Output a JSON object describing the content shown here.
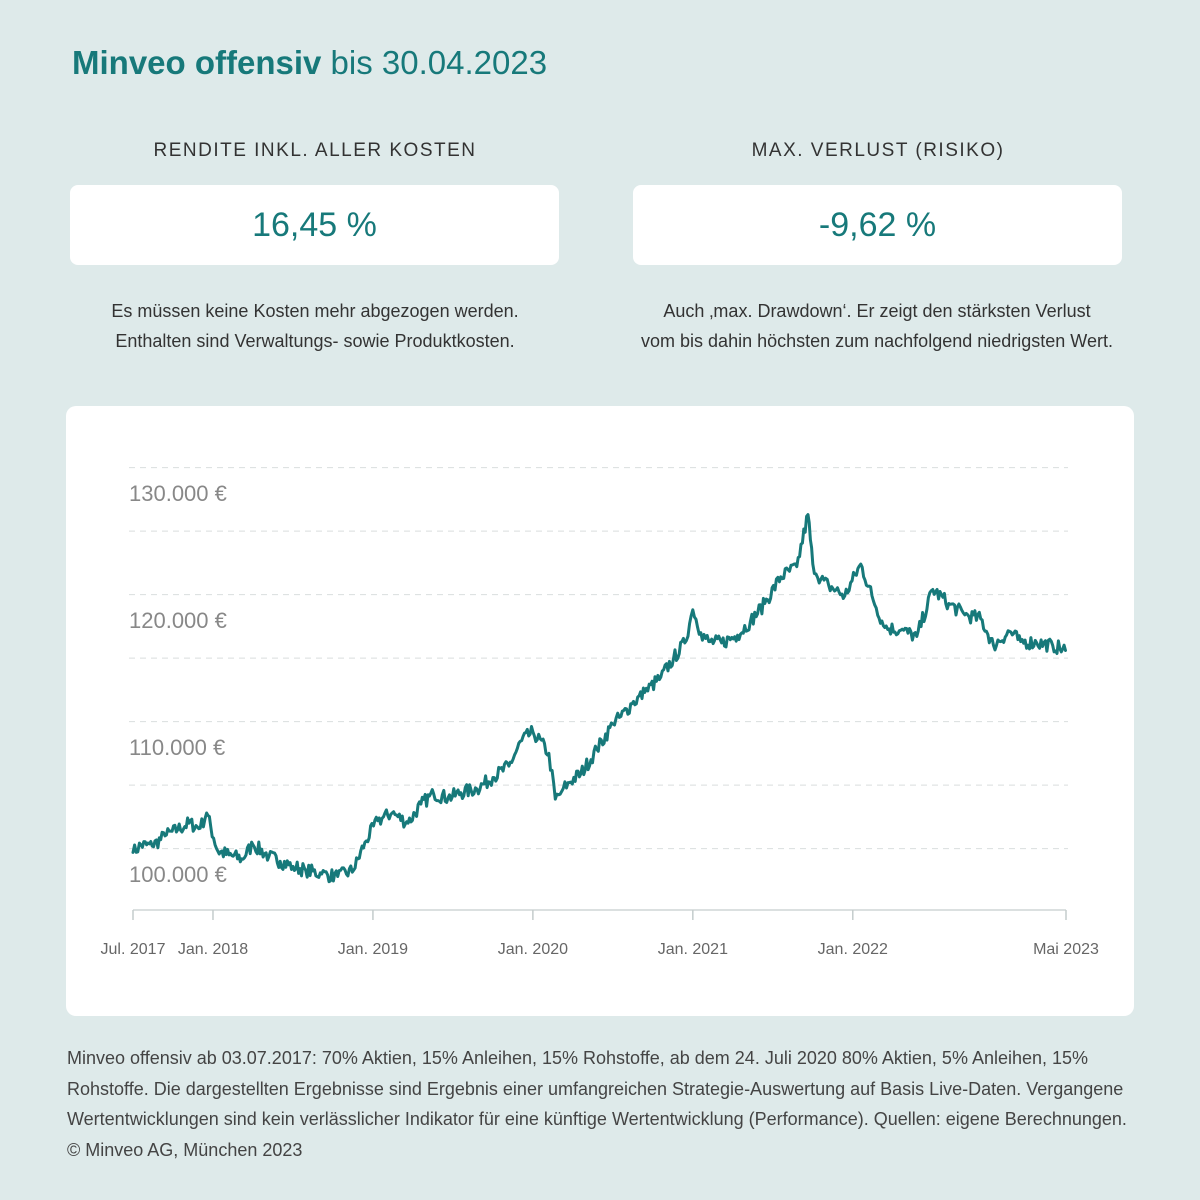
{
  "header": {
    "title_bold": "Minveo offensiv",
    "title_rest": "bis 30.04.2023"
  },
  "kpis": [
    {
      "label": "RENDITE INKL. ALLER KOSTEN",
      "value": "16,45 %",
      "desc_line1": "Es müssen keine Kosten mehr abgezogen werden.",
      "desc_line2": "Enthalten sind Verwaltungs- sowie Produktkosten."
    },
    {
      "label": "MAX. VERLUST (RISIKO)",
      "value": "-9,62 %",
      "desc_line1": "Auch ‚max. Drawdown‘. Er zeigt den stärksten Verlust",
      "desc_line2": "vom bis dahin höchsten zum nachfolgend niedrigsten Wert."
    }
  ],
  "colors": {
    "accent": "#17797a",
    "background": "#deeaea",
    "card": "#ffffff"
  },
  "chart_data": {
    "type": "line",
    "title": "",
    "xlabel": "",
    "ylabel": "",
    "x_range": [
      2017.5,
      2023.333
    ],
    "ylim": [
      96500,
      131000
    ],
    "y_ticks": [
      {
        "value": 100000,
        "label": "100.000 €"
      },
      {
        "value": 110000,
        "label": "110.000 €"
      },
      {
        "value": 120000,
        "label": "120.000 €"
      },
      {
        "value": 130000,
        "label": "130.000 €"
      }
    ],
    "gridlines": [
      102000,
      107000,
      112000,
      117000,
      122000,
      127000,
      132000
    ],
    "x_ticks": [
      {
        "value": 2017.5,
        "label": "Jul. 2017"
      },
      {
        "value": 2018.0,
        "label": "Jan. 2018"
      },
      {
        "value": 2019.0,
        "label": "Jan. 2019"
      },
      {
        "value": 2020.0,
        "label": "Jan. 2020"
      },
      {
        "value": 2021.0,
        "label": "Jan. 2021"
      },
      {
        "value": 2022.0,
        "label": "Jan. 2022"
      },
      {
        "value": 2023.333,
        "label": "Mai 2023"
      }
    ],
    "series": [
      {
        "name": "Minveo offensiv",
        "x": [
          2017.5,
          2017.55,
          2017.62,
          2017.7,
          2017.78,
          2017.85,
          2017.92,
          2017.96,
          2018.03,
          2018.1,
          2018.18,
          2018.25,
          2018.35,
          2018.42,
          2018.5,
          2018.58,
          2018.68,
          2018.78,
          2018.88,
          2018.95,
          2019.03,
          2019.12,
          2019.22,
          2019.3,
          2019.38,
          2019.47,
          2019.55,
          2019.65,
          2019.75,
          2019.85,
          2019.93,
          2020.0,
          2020.1,
          2020.14,
          2020.18,
          2020.22,
          2020.3,
          2020.4,
          2020.5,
          2020.55,
          2020.62,
          2020.7,
          2020.8,
          2020.88,
          2020.95,
          2021.0,
          2021.05,
          2021.1,
          2021.18,
          2021.28,
          2021.36,
          2021.45,
          2021.55,
          2021.65,
          2021.72,
          2021.75,
          2021.8,
          2021.85,
          2021.95,
          2022.05,
          2022.12,
          2022.2,
          2022.3,
          2022.4,
          2022.5,
          2022.6,
          2022.7,
          2022.8,
          2022.88,
          2022.98,
          2023.05,
          2023.15,
          2023.25,
          2023.33
        ],
        "values": [
          101700,
          102300,
          102200,
          103000,
          103500,
          104000,
          103600,
          104800,
          101800,
          101500,
          101200,
          102300,
          101400,
          101000,
          100600,
          100300,
          100000,
          99800,
          100300,
          102500,
          104200,
          104800,
          104000,
          105500,
          106300,
          106000,
          106400,
          106700,
          107600,
          108500,
          110500,
          111200,
          109500,
          105900,
          106500,
          107200,
          107900,
          109800,
          111800,
          112400,
          113400,
          114300,
          115500,
          117000,
          118200,
          120800,
          119000,
          118300,
          118200,
          118800,
          119900,
          121300,
          123400,
          124200,
          128300,
          124400,
          123200,
          122700,
          121900,
          124400,
          121900,
          119400,
          119200,
          118700,
          122400,
          121300,
          120400,
          120100,
          118000,
          119100,
          118300,
          118200,
          118000,
          117600
        ]
      }
    ]
  },
  "footnote": "Minveo offensiv ab 03.07.2017: 70% Aktien, 15% Anleihen, 15% Rohstoffe, ab dem 24. Juli 2020 80% Aktien, 5% Anleihen, 15% Rohstoffe. Die dargestellten Ergebnisse sind Ergebnis einer umfangreichen Strategie-Auswertung auf Basis Live-Daten. Vergangene Wertentwicklungen sind kein verlässlicher Indikator für eine künftige Wertentwicklung (Performance). Quellen: eigene Berechnungen. © Minveo AG, München 2023"
}
